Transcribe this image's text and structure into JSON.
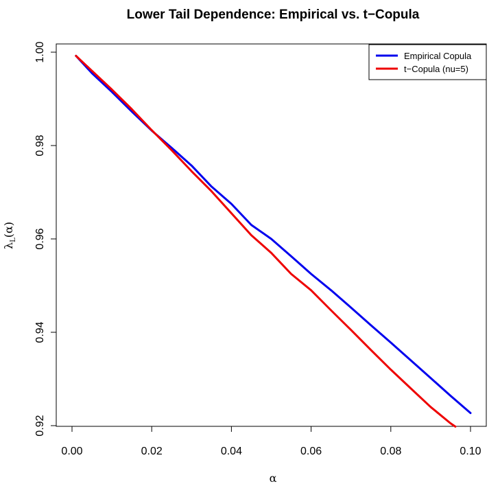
{
  "chart_data": {
    "type": "line",
    "title": "Lower Tail Dependence: Empirical vs. t−Copula",
    "xlabel": "α",
    "ylabel_main": "λ",
    "ylabel_sub": "L",
    "ylabel_arg": "(α)",
    "xlim": [
      0.0,
      0.1
    ],
    "ylim": [
      0.92,
      1.0
    ],
    "x_ticks": [
      "0.00",
      "0.02",
      "0.04",
      "0.06",
      "0.08",
      "0.10"
    ],
    "x_tick_values": [
      0.0,
      0.02,
      0.04,
      0.06,
      0.08,
      0.1
    ],
    "y_ticks": [
      "0.92",
      "0.94",
      "0.96",
      "0.98",
      "1.00"
    ],
    "y_tick_values": [
      0.92,
      0.94,
      0.96,
      0.98,
      1.0
    ],
    "legend_position": "top-right",
    "series": [
      {
        "name": "Empirical Copula",
        "color": "#0000ee",
        "x": [
          0.001,
          0.005,
          0.01,
          0.015,
          0.02,
          0.025,
          0.03,
          0.035,
          0.04,
          0.045,
          0.05,
          0.055,
          0.06,
          0.065,
          0.07,
          0.075,
          0.08,
          0.085,
          0.09,
          0.095,
          0.1
        ],
        "y": [
          0.9992,
          0.9955,
          0.9915,
          0.9873,
          0.9832,
          0.9795,
          0.9757,
          0.9712,
          0.9675,
          0.963,
          0.96,
          0.9563,
          0.9525,
          0.949,
          0.9453,
          0.9415,
          0.9378,
          0.934,
          0.9302,
          0.9264,
          0.9227
        ]
      },
      {
        "name": "t−Copula (nu=5)",
        "color": "#ee0000",
        "x": [
          0.001,
          0.005,
          0.01,
          0.015,
          0.02,
          0.025,
          0.03,
          0.035,
          0.04,
          0.045,
          0.05,
          0.055,
          0.06,
          0.065,
          0.07,
          0.075,
          0.08,
          0.085,
          0.09,
          0.095,
          0.0962
        ],
        "y": [
          0.9992,
          0.996,
          0.992,
          0.9878,
          0.9833,
          0.979,
          0.9745,
          0.9702,
          0.9655,
          0.9608,
          0.957,
          0.9525,
          0.949,
          0.9447,
          0.9405,
          0.9362,
          0.932,
          0.928,
          0.924,
          0.9205,
          0.9198
        ]
      }
    ]
  }
}
